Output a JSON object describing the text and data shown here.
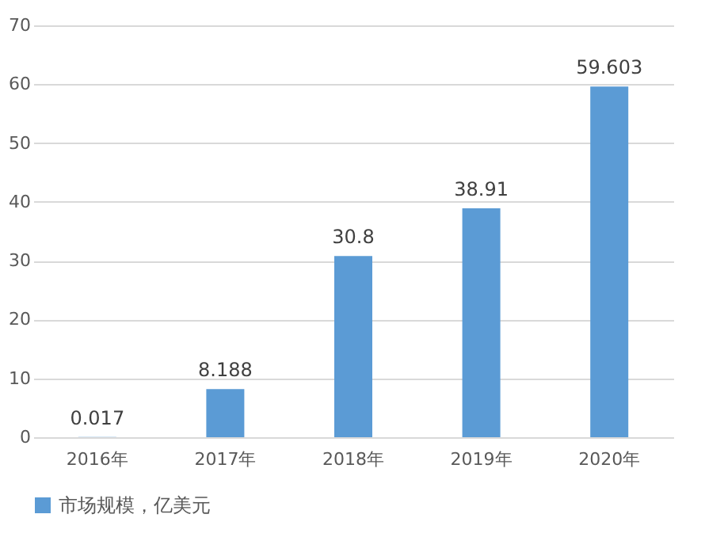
{
  "chart_data": {
    "type": "bar",
    "categories": [
      "2016年",
      "2017年",
      "2018年",
      "2019年",
      "2020年"
    ],
    "series": [
      {
        "name": "市场规模，亿美元",
        "color": "#5b9bd5",
        "values": [
          0.017,
          8.188,
          30.8,
          38.91,
          59.603
        ]
      }
    ],
    "ylim": [
      0,
      70
    ],
    "yticks": [
      0,
      10,
      20,
      30,
      40,
      50,
      60,
      70
    ],
    "grid": "y",
    "legend": "bottom",
    "data_labels": true
  }
}
